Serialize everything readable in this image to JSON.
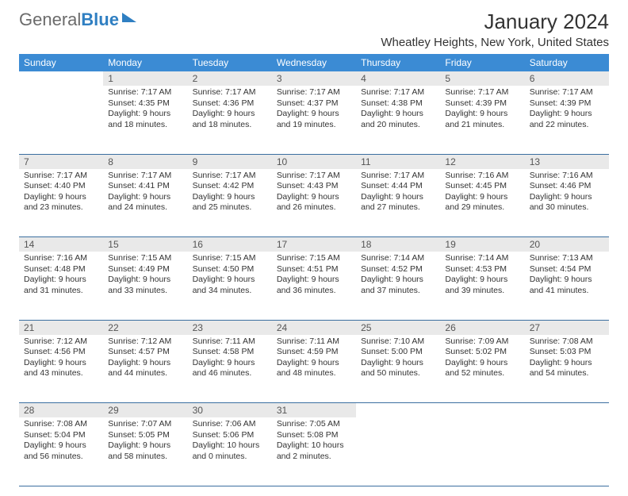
{
  "logo": {
    "part1": "General",
    "part2": "Blue"
  },
  "title": "January 2024",
  "location": "Wheatley Heights, New York, United States",
  "colors": {
    "header_bg": "#3b8bd4",
    "daynum_bg": "#e9e9e9",
    "row_divider": "#3b6fa0",
    "logo_gray": "#6b6b6b",
    "logo_blue": "#2f7fc2"
  },
  "weekdays": [
    "Sunday",
    "Monday",
    "Tuesday",
    "Wednesday",
    "Thursday",
    "Friday",
    "Saturday"
  ],
  "weeks": [
    [
      {
        "n": "",
        "lines": [
          "",
          "",
          "",
          ""
        ]
      },
      {
        "n": "1",
        "lines": [
          "Sunrise: 7:17 AM",
          "Sunset: 4:35 PM",
          "Daylight: 9 hours",
          "and 18 minutes."
        ]
      },
      {
        "n": "2",
        "lines": [
          "Sunrise: 7:17 AM",
          "Sunset: 4:36 PM",
          "Daylight: 9 hours",
          "and 18 minutes."
        ]
      },
      {
        "n": "3",
        "lines": [
          "Sunrise: 7:17 AM",
          "Sunset: 4:37 PM",
          "Daylight: 9 hours",
          "and 19 minutes."
        ]
      },
      {
        "n": "4",
        "lines": [
          "Sunrise: 7:17 AM",
          "Sunset: 4:38 PM",
          "Daylight: 9 hours",
          "and 20 minutes."
        ]
      },
      {
        "n": "5",
        "lines": [
          "Sunrise: 7:17 AM",
          "Sunset: 4:39 PM",
          "Daylight: 9 hours",
          "and 21 minutes."
        ]
      },
      {
        "n": "6",
        "lines": [
          "Sunrise: 7:17 AM",
          "Sunset: 4:39 PM",
          "Daylight: 9 hours",
          "and 22 minutes."
        ]
      }
    ],
    [
      {
        "n": "7",
        "lines": [
          "Sunrise: 7:17 AM",
          "Sunset: 4:40 PM",
          "Daylight: 9 hours",
          "and 23 minutes."
        ]
      },
      {
        "n": "8",
        "lines": [
          "Sunrise: 7:17 AM",
          "Sunset: 4:41 PM",
          "Daylight: 9 hours",
          "and 24 minutes."
        ]
      },
      {
        "n": "9",
        "lines": [
          "Sunrise: 7:17 AM",
          "Sunset: 4:42 PM",
          "Daylight: 9 hours",
          "and 25 minutes."
        ]
      },
      {
        "n": "10",
        "lines": [
          "Sunrise: 7:17 AM",
          "Sunset: 4:43 PM",
          "Daylight: 9 hours",
          "and 26 minutes."
        ]
      },
      {
        "n": "11",
        "lines": [
          "Sunrise: 7:17 AM",
          "Sunset: 4:44 PM",
          "Daylight: 9 hours",
          "and 27 minutes."
        ]
      },
      {
        "n": "12",
        "lines": [
          "Sunrise: 7:16 AM",
          "Sunset: 4:45 PM",
          "Daylight: 9 hours",
          "and 29 minutes."
        ]
      },
      {
        "n": "13",
        "lines": [
          "Sunrise: 7:16 AM",
          "Sunset: 4:46 PM",
          "Daylight: 9 hours",
          "and 30 minutes."
        ]
      }
    ],
    [
      {
        "n": "14",
        "lines": [
          "Sunrise: 7:16 AM",
          "Sunset: 4:48 PM",
          "Daylight: 9 hours",
          "and 31 minutes."
        ]
      },
      {
        "n": "15",
        "lines": [
          "Sunrise: 7:15 AM",
          "Sunset: 4:49 PM",
          "Daylight: 9 hours",
          "and 33 minutes."
        ]
      },
      {
        "n": "16",
        "lines": [
          "Sunrise: 7:15 AM",
          "Sunset: 4:50 PM",
          "Daylight: 9 hours",
          "and 34 minutes."
        ]
      },
      {
        "n": "17",
        "lines": [
          "Sunrise: 7:15 AM",
          "Sunset: 4:51 PM",
          "Daylight: 9 hours",
          "and 36 minutes."
        ]
      },
      {
        "n": "18",
        "lines": [
          "Sunrise: 7:14 AM",
          "Sunset: 4:52 PM",
          "Daylight: 9 hours",
          "and 37 minutes."
        ]
      },
      {
        "n": "19",
        "lines": [
          "Sunrise: 7:14 AM",
          "Sunset: 4:53 PM",
          "Daylight: 9 hours",
          "and 39 minutes."
        ]
      },
      {
        "n": "20",
        "lines": [
          "Sunrise: 7:13 AM",
          "Sunset: 4:54 PM",
          "Daylight: 9 hours",
          "and 41 minutes."
        ]
      }
    ],
    [
      {
        "n": "21",
        "lines": [
          "Sunrise: 7:12 AM",
          "Sunset: 4:56 PM",
          "Daylight: 9 hours",
          "and 43 minutes."
        ]
      },
      {
        "n": "22",
        "lines": [
          "Sunrise: 7:12 AM",
          "Sunset: 4:57 PM",
          "Daylight: 9 hours",
          "and 44 minutes."
        ]
      },
      {
        "n": "23",
        "lines": [
          "Sunrise: 7:11 AM",
          "Sunset: 4:58 PM",
          "Daylight: 9 hours",
          "and 46 minutes."
        ]
      },
      {
        "n": "24",
        "lines": [
          "Sunrise: 7:11 AM",
          "Sunset: 4:59 PM",
          "Daylight: 9 hours",
          "and 48 minutes."
        ]
      },
      {
        "n": "25",
        "lines": [
          "Sunrise: 7:10 AM",
          "Sunset: 5:00 PM",
          "Daylight: 9 hours",
          "and 50 minutes."
        ]
      },
      {
        "n": "26",
        "lines": [
          "Sunrise: 7:09 AM",
          "Sunset: 5:02 PM",
          "Daylight: 9 hours",
          "and 52 minutes."
        ]
      },
      {
        "n": "27",
        "lines": [
          "Sunrise: 7:08 AM",
          "Sunset: 5:03 PM",
          "Daylight: 9 hours",
          "and 54 minutes."
        ]
      }
    ],
    [
      {
        "n": "28",
        "lines": [
          "Sunrise: 7:08 AM",
          "Sunset: 5:04 PM",
          "Daylight: 9 hours",
          "and 56 minutes."
        ]
      },
      {
        "n": "29",
        "lines": [
          "Sunrise: 7:07 AM",
          "Sunset: 5:05 PM",
          "Daylight: 9 hours",
          "and 58 minutes."
        ]
      },
      {
        "n": "30",
        "lines": [
          "Sunrise: 7:06 AM",
          "Sunset: 5:06 PM",
          "Daylight: 10 hours",
          "and 0 minutes."
        ]
      },
      {
        "n": "31",
        "lines": [
          "Sunrise: 7:05 AM",
          "Sunset: 5:08 PM",
          "Daylight: 10 hours",
          "and 2 minutes."
        ]
      },
      {
        "n": "",
        "lines": [
          "",
          "",
          "",
          ""
        ]
      },
      {
        "n": "",
        "lines": [
          "",
          "",
          "",
          ""
        ]
      },
      {
        "n": "",
        "lines": [
          "",
          "",
          "",
          ""
        ]
      }
    ]
  ]
}
